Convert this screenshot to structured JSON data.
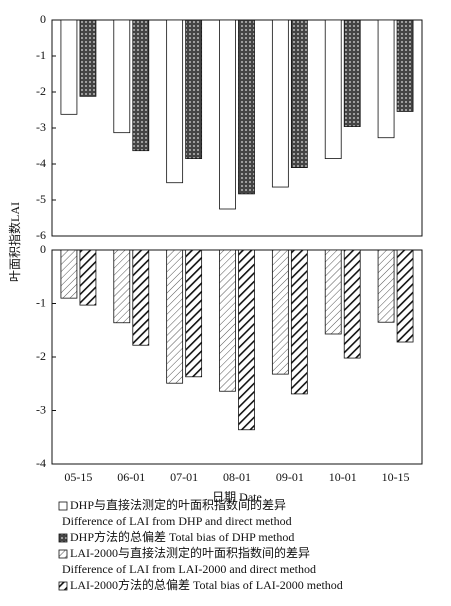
{
  "chart_data": [
    {
      "type": "bar",
      "ylabel": "叶面积指数LAI",
      "categories": [
        null,
        null,
        null,
        null,
        null,
        null,
        null
      ],
      "series": [
        {
          "name": [
            "DHP与直接法测定的叶面积指数间的差异",
            "Difference of LAI from DHP and direct method"
          ],
          "color": "#ffffff",
          "pattern": "none",
          "values": [
            -2.62,
            -3.13,
            -4.52,
            -5.25,
            -4.64,
            -3.85,
            -3.27
          ]
        },
        {
          "name": [
            "DHP方法的总偏差 Total bias of DHP method"
          ],
          "color": "#555555",
          "pattern": "crosshatch",
          "values": [
            -2.12,
            -3.63,
            -3.85,
            -4.83,
            -4.1,
            -2.96,
            -2.54
          ]
        }
      ],
      "ylim": [
        -6,
        0
      ],
      "yticks": [
        0,
        -1,
        -2,
        -3,
        -4,
        -5,
        -6
      ]
    },
    {
      "type": "bar",
      "xlabel": "日期 Date",
      "categories": [
        "05-15",
        "06-01",
        "07-01",
        "08-01",
        "09-01",
        "10-01",
        "10-15"
      ],
      "series": [
        {
          "name": [
            "LAI-2000与直接法测定的叶面积指数间的差异",
            "Difference of LAI from LAI-2000 and direct method"
          ],
          "color": "#555555",
          "pattern": "thin-hatch",
          "values": [
            -0.9,
            -1.36,
            -2.49,
            -2.64,
            -2.32,
            -1.57,
            -1.35
          ]
        },
        {
          "name": [
            "LAI-2000方法的总偏差 Total bias of LAI-2000 method"
          ],
          "color": "#111111",
          "pattern": "thick-hatch",
          "values": [
            -1.03,
            -1.78,
            -2.37,
            -3.36,
            -2.69,
            -2.02,
            -1.72
          ]
        }
      ],
      "ylim": [
        -4,
        0
      ],
      "yticks": [
        0,
        -1,
        -2,
        -3,
        -4
      ]
    }
  ]
}
